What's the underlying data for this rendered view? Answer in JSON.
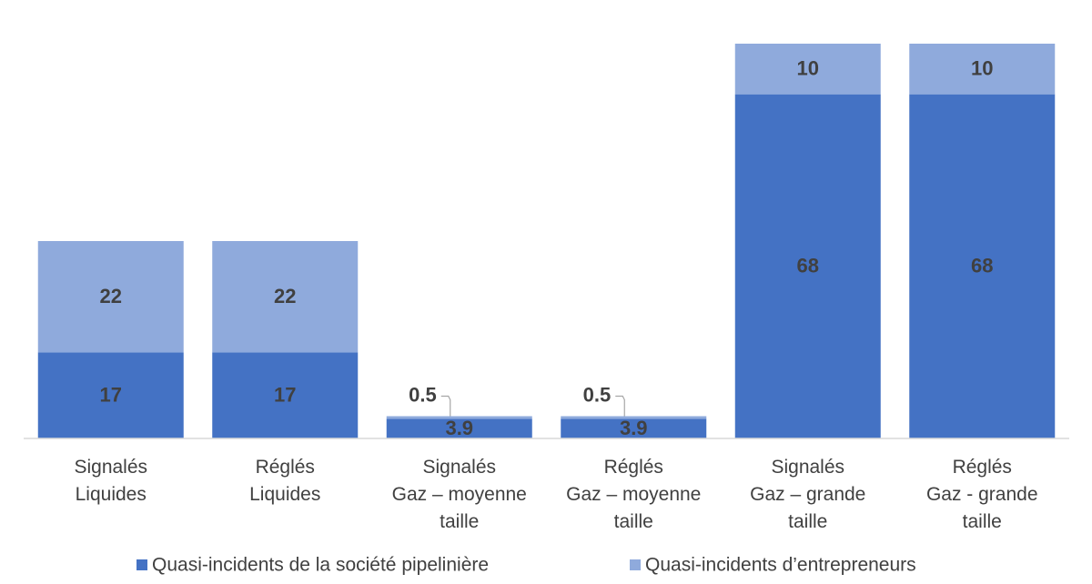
{
  "chart_data": {
    "type": "stacked-bar",
    "categories": [
      [
        "Signalés",
        "Liquides"
      ],
      [
        "Réglés",
        "Liquides"
      ],
      [
        "Signalés",
        "Gaz – moyenne",
        "taille"
      ],
      [
        "Réglés",
        "Gaz – moyenne",
        "taille"
      ],
      [
        "Signalés",
        "Gaz – grande",
        "taille"
      ],
      [
        "Réglés",
        "Gaz - grande",
        "taille"
      ]
    ],
    "series": [
      {
        "name": "Quasi-incidents de la société pipelinière",
        "color": "#4472c4",
        "values": [
          17,
          17,
          3.9,
          3.9,
          68,
          68
        ]
      },
      {
        "name": "Quasi-incidents d’entrepreneurs",
        "color": "#8faadc",
        "values": [
          22,
          22,
          0.5,
          0.5,
          10,
          10
        ]
      }
    ]
  }
}
